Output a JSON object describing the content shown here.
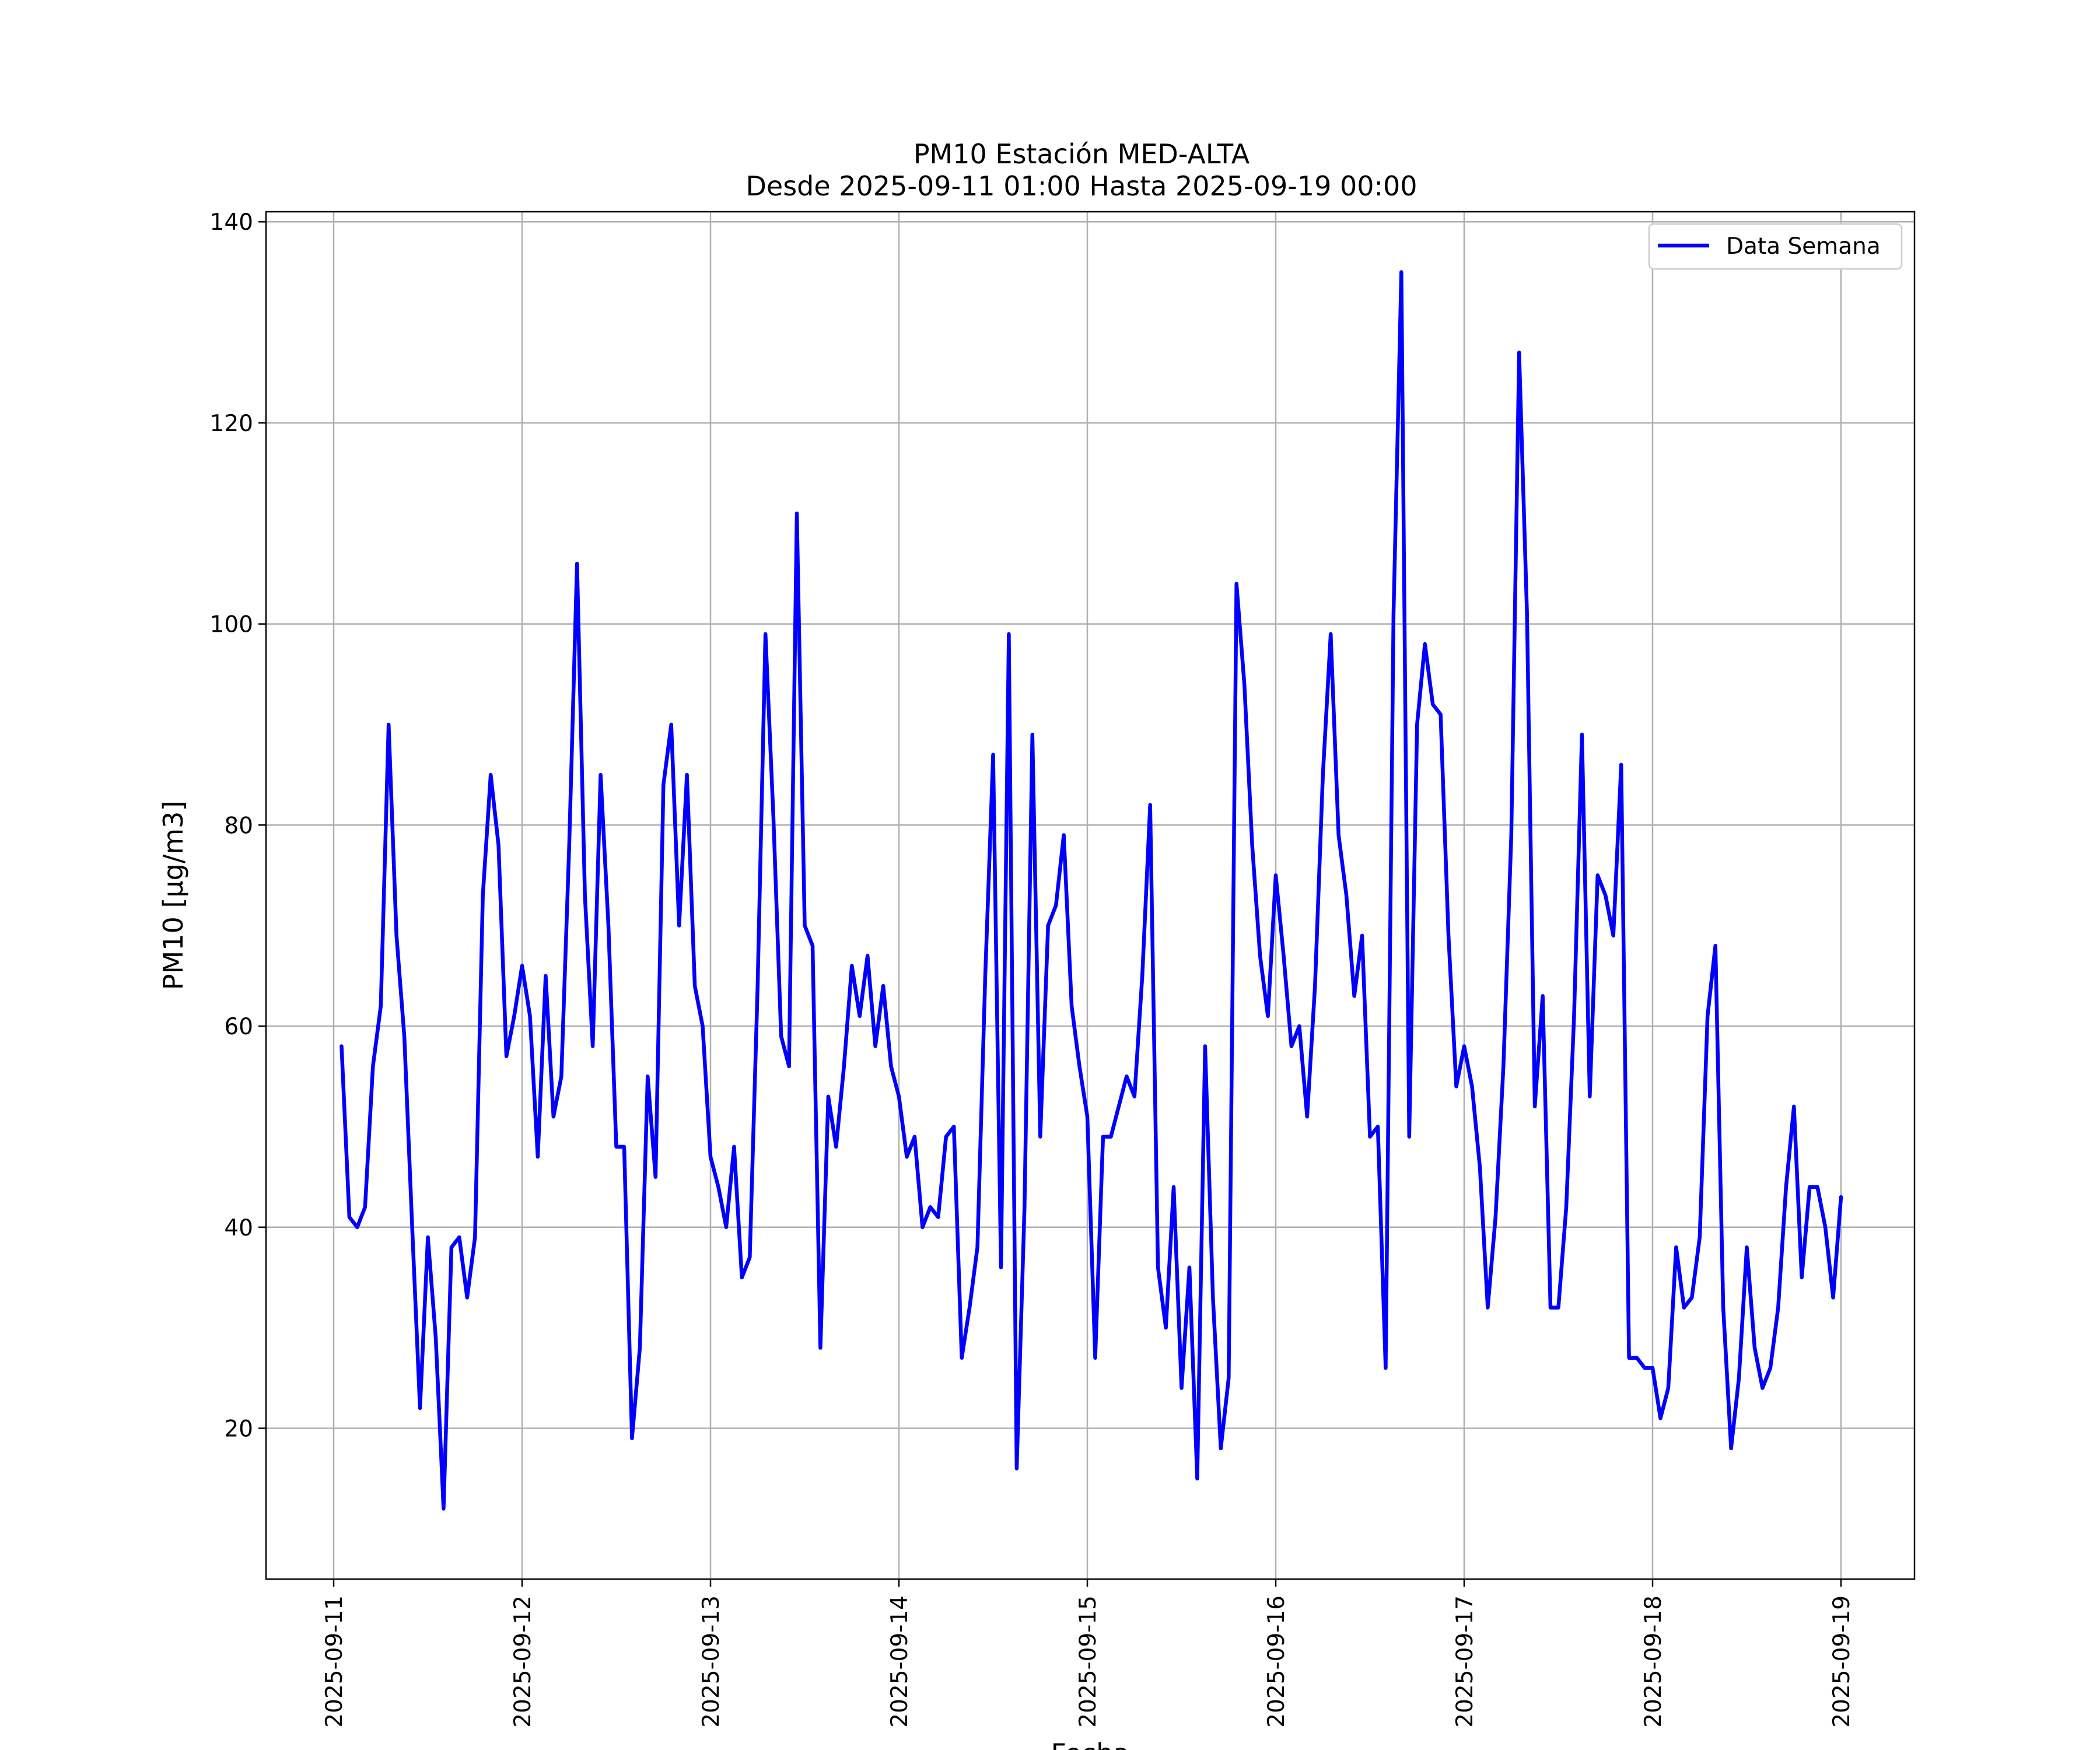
{
  "chart_data": {
    "type": "line",
    "title": "PM10 Estación MED-ALTA",
    "subtitle": "Desde 2025-09-11 01:00 Hasta 2025-09-19 00:00",
    "xlabel": "Fecha",
    "ylabel": "PM10 [μg/m3]",
    "x_start": "2025-09-11 01:00",
    "x_end": "2025-09-19 00:00",
    "x_tick_labels": [
      "2025-09-11",
      "2025-09-12",
      "2025-09-13",
      "2025-09-14",
      "2025-09-15",
      "2025-09-16",
      "2025-09-17",
      "2025-09-18",
      "2025-09-19"
    ],
    "y_ticks": [
      20,
      40,
      60,
      80,
      100,
      120,
      140
    ],
    "ylim": [
      5,
      141
    ],
    "grid": true,
    "legend_position": "top-right",
    "series": [
      {
        "name": "Data Semana",
        "color": "#0000ff",
        "values": [
          58,
          41,
          40,
          42,
          56,
          62,
          90,
          69,
          59,
          40,
          22,
          39,
          29,
          12,
          38,
          39,
          33,
          39,
          73,
          85,
          78,
          57,
          61,
          66,
          61,
          47,
          65,
          51,
          55,
          78,
          106,
          73,
          58,
          85,
          70,
          48,
          48,
          19,
          28,
          55,
          45,
          84,
          90,
          70,
          85,
          64,
          60,
          47,
          44,
          40,
          48,
          35,
          37,
          64,
          99,
          81,
          59,
          56,
          111,
          70,
          68,
          28,
          53,
          48,
          56,
          66,
          61,
          67,
          58,
          64,
          56,
          53,
          47,
          49,
          40,
          42,
          41,
          49,
          50,
          27,
          32,
          38,
          65,
          87,
          36,
          99,
          16,
          42,
          89,
          49,
          70,
          72,
          79,
          62,
          56,
          51,
          27,
          49,
          49,
          52,
          55,
          53,
          65,
          82,
          36,
          30,
          44,
          24,
          36,
          15,
          58,
          33,
          18,
          25,
          104,
          94,
          78,
          67,
          61,
          75,
          67,
          58,
          60,
          51,
          64,
          85,
          99,
          79,
          73,
          63,
          69,
          49,
          50,
          26,
          101,
          135,
          49,
          90,
          98,
          92,
          91,
          69,
          54,
          58,
          54,
          46,
          32,
          41,
          56,
          79,
          127,
          101,
          52,
          63,
          32,
          32,
          42,
          61,
          89,
          53,
          75,
          73,
          69,
          86,
          27,
          27,
          26,
          26,
          21,
          24,
          38,
          32,
          33,
          39,
          61,
          68,
          32,
          18,
          25,
          38,
          28,
          24,
          26,
          32,
          44,
          52,
          35,
          44,
          44,
          40,
          33,
          43
        ]
      }
    ]
  }
}
